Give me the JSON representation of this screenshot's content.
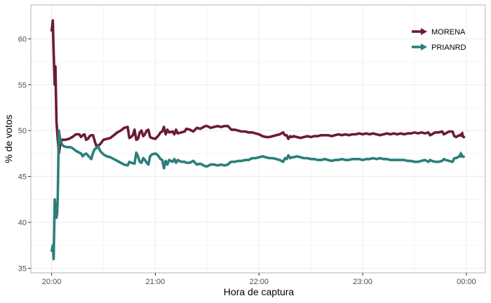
{
  "chart_data": {
    "type": "line",
    "xlabel": "Hora de captura",
    "ylabel": "% de votos",
    "x_unit": "time",
    "x_ticks": [
      "20:00",
      "21:00",
      "22:00",
      "23:00",
      "00:00"
    ],
    "x_tick_values": [
      0,
      60,
      120,
      180,
      240
    ],
    "xlim": [
      -12,
      251
    ],
    "y_ticks": [
      35,
      40,
      45,
      50,
      55,
      60
    ],
    "ylim": [
      34.5,
      63.7
    ],
    "grid": true,
    "legend_position": "top-right",
    "series": [
      {
        "name": "MORENA",
        "color": "#6b1a37",
        "points": [
          [
            0,
            60.8
          ],
          [
            0.7,
            62.0
          ],
          [
            1.2,
            58.5
          ],
          [
            1.8,
            55.0
          ],
          [
            2.2,
            57.0
          ],
          [
            2.8,
            51.0
          ],
          [
            3.5,
            49.2
          ],
          [
            4.2,
            47.5
          ],
          [
            5,
            48.5
          ],
          [
            6,
            49.0
          ],
          [
            8,
            49.0
          ],
          [
            10,
            49.1
          ],
          [
            12,
            49.3
          ],
          [
            14,
            49.6
          ],
          [
            16,
            49.6
          ],
          [
            17,
            49.3
          ],
          [
            18,
            49.5
          ],
          [
            19,
            49.6
          ],
          [
            20,
            49.0
          ],
          [
            21,
            49.1
          ],
          [
            22,
            49.4
          ],
          [
            23,
            49.5
          ],
          [
            24,
            49.5
          ],
          [
            25,
            48.8
          ],
          [
            26,
            48.3
          ],
          [
            27,
            48.4
          ],
          [
            28,
            48.5
          ],
          [
            30,
            49.0
          ],
          [
            32,
            49.1
          ],
          [
            34,
            49.2
          ],
          [
            36,
            49.5
          ],
          [
            38,
            49.8
          ],
          [
            40,
            50.0
          ],
          [
            42,
            50.3
          ],
          [
            44,
            50.4
          ],
          [
            45,
            49.2
          ],
          [
            46,
            49.3
          ],
          [
            47,
            49.5
          ],
          [
            48,
            50.1
          ],
          [
            49,
            49.0
          ],
          [
            50,
            49.1
          ],
          [
            51,
            49.8
          ],
          [
            52,
            50.0
          ],
          [
            53,
            49.4
          ],
          [
            54,
            49.6
          ],
          [
            55,
            50.0
          ],
          [
            56,
            50.1
          ],
          [
            57,
            49.3
          ],
          [
            58,
            49.2
          ],
          [
            60,
            49.1
          ],
          [
            61,
            49.3
          ],
          [
            62,
            49.5
          ],
          [
            63,
            49.8
          ],
          [
            64,
            49.9
          ],
          [
            65,
            50.4
          ],
          [
            66,
            49.6
          ],
          [
            67,
            50.1
          ],
          [
            68,
            49.8
          ],
          [
            70,
            49.9
          ],
          [
            71,
            49.6
          ],
          [
            72,
            50.1
          ],
          [
            73,
            49.7
          ],
          [
            75,
            49.8
          ],
          [
            77,
            49.9
          ],
          [
            78,
            50.2
          ],
          [
            80,
            50.1
          ],
          [
            82,
            49.9
          ],
          [
            84,
            50.3
          ],
          [
            86,
            50.2
          ],
          [
            88,
            50.4
          ],
          [
            89,
            50.5
          ],
          [
            90,
            50.5
          ],
          [
            91,
            50.4
          ],
          [
            92,
            50.3
          ],
          [
            94,
            50.4
          ],
          [
            96,
            50.5
          ],
          [
            98,
            50.4
          ],
          [
            100,
            50.5
          ],
          [
            102,
            50.5
          ],
          [
            103,
            50.3
          ],
          [
            104,
            50.1
          ],
          [
            106,
            50.1
          ],
          [
            108,
            50.0
          ],
          [
            110,
            49.9
          ],
          [
            112,
            49.9
          ],
          [
            114,
            49.8
          ],
          [
            116,
            49.8
          ],
          [
            118,
            49.7
          ],
          [
            120,
            49.6
          ],
          [
            122,
            49.4
          ],
          [
            124,
            49.3
          ],
          [
            126,
            49.3
          ],
          [
            128,
            49.4
          ],
          [
            130,
            49.5
          ],
          [
            132,
            49.6
          ],
          [
            134,
            49.8
          ],
          [
            135,
            49.5
          ],
          [
            136,
            49.5
          ],
          [
            137,
            49.1
          ],
          [
            138,
            49.4
          ],
          [
            139,
            49.3
          ],
          [
            140,
            49.4
          ],
          [
            142,
            49.3
          ],
          [
            144,
            49.2
          ],
          [
            146,
            49.3
          ],
          [
            148,
            49.4
          ],
          [
            150,
            49.3
          ],
          [
            152,
            49.4
          ],
          [
            154,
            49.4
          ],
          [
            156,
            49.5
          ],
          [
            158,
            49.5
          ],
          [
            160,
            49.5
          ],
          [
            162,
            49.4
          ],
          [
            164,
            49.5
          ],
          [
            166,
            49.6
          ],
          [
            168,
            49.5
          ],
          [
            170,
            49.6
          ],
          [
            172,
            49.5
          ],
          [
            174,
            49.6
          ],
          [
            176,
            49.6
          ],
          [
            178,
            49.7
          ],
          [
            180,
            49.6
          ],
          [
            182,
            49.7
          ],
          [
            184,
            49.6
          ],
          [
            186,
            49.7
          ],
          [
            188,
            49.6
          ],
          [
            190,
            49.5
          ],
          [
            192,
            49.6
          ],
          [
            194,
            49.7
          ],
          [
            196,
            49.6
          ],
          [
            198,
            49.7
          ],
          [
            200,
            49.6
          ],
          [
            202,
            49.7
          ],
          [
            204,
            49.6
          ],
          [
            206,
            49.7
          ],
          [
            208,
            49.7
          ],
          [
            210,
            49.8
          ],
          [
            212,
            49.7
          ],
          [
            214,
            49.8
          ],
          [
            216,
            49.7
          ],
          [
            218,
            49.8
          ],
          [
            219,
            49.5
          ],
          [
            220,
            49.6
          ],
          [
            222,
            49.8
          ],
          [
            224,
            49.8
          ],
          [
            226,
            49.9
          ],
          [
            227,
            49.6
          ],
          [
            228,
            49.7
          ],
          [
            230,
            49.9
          ],
          [
            232,
            49.9
          ],
          [
            233,
            49.4
          ],
          [
            234,
            49.3
          ],
          [
            236,
            49.5
          ],
          [
            238,
            49.4
          ],
          [
            239,
            49.2
          ]
        ]
      },
      {
        "name": "PRIANRD",
        "color": "#2a7f7a",
        "points": [
          [
            0,
            36.8
          ],
          [
            0.7,
            37.5
          ],
          [
            1.2,
            36.0
          ],
          [
            1.8,
            42.5
          ],
          [
            2.2,
            41.5
          ],
          [
            2.8,
            40.5
          ],
          [
            3.2,
            41.0
          ],
          [
            3.6,
            43.0
          ],
          [
            4.2,
            50.0
          ],
          [
            5,
            49.0
          ],
          [
            6,
            48.5
          ],
          [
            7,
            48.3
          ],
          [
            9,
            48.2
          ],
          [
            11,
            48.2
          ],
          [
            12,
            48.1
          ],
          [
            14,
            47.8
          ],
          [
            16,
            47.6
          ],
          [
            17,
            47.5
          ],
          [
            18,
            47.2
          ],
          [
            19,
            47.4
          ],
          [
            20,
            47.5
          ],
          [
            21,
            47.3
          ],
          [
            22,
            47.1
          ],
          [
            23,
            46.9
          ],
          [
            24,
            47.6
          ],
          [
            25,
            48.0
          ],
          [
            26,
            48.1
          ],
          [
            27,
            48.3
          ],
          [
            28,
            47.8
          ],
          [
            30,
            47.4
          ],
          [
            32,
            47.2
          ],
          [
            34,
            47.1
          ],
          [
            36,
            46.9
          ],
          [
            38,
            46.7
          ],
          [
            40,
            46.5
          ],
          [
            42,
            46.3
          ],
          [
            44,
            46.2
          ],
          [
            45,
            46.6
          ],
          [
            46,
            46.5
          ],
          [
            48,
            46.4
          ],
          [
            49,
            47.6
          ],
          [
            50,
            47.2
          ],
          [
            51,
            46.6
          ],
          [
            52,
            46.5
          ],
          [
            53,
            47.0
          ],
          [
            54,
            46.8
          ],
          [
            55,
            46.5
          ],
          [
            56,
            46.3
          ],
          [
            57,
            47.2
          ],
          [
            58,
            47.4
          ],
          [
            60,
            47.5
          ],
          [
            61,
            47.4
          ],
          [
            62,
            47.2
          ],
          [
            63,
            46.9
          ],
          [
            64,
            46.8
          ],
          [
            65,
            45.9
          ],
          [
            66,
            46.7
          ],
          [
            67,
            46.3
          ],
          [
            68,
            46.8
          ],
          [
            70,
            46.6
          ],
          [
            71,
            46.9
          ],
          [
            72,
            46.5
          ],
          [
            73,
            46.8
          ],
          [
            75,
            46.6
          ],
          [
            77,
            46.6
          ],
          [
            78,
            46.5
          ],
          [
            80,
            46.5
          ],
          [
            82,
            46.7
          ],
          [
            84,
            46.3
          ],
          [
            86,
            46.4
          ],
          [
            88,
            46.2
          ],
          [
            89,
            46.1
          ],
          [
            90,
            46.1
          ],
          [
            91,
            46.2
          ],
          [
            92,
            46.3
          ],
          [
            94,
            46.3
          ],
          [
            96,
            46.2
          ],
          [
            98,
            46.3
          ],
          [
            100,
            46.2
          ],
          [
            102,
            46.3
          ],
          [
            103,
            46.5
          ],
          [
            104,
            46.6
          ],
          [
            106,
            46.6
          ],
          [
            108,
            46.7
          ],
          [
            110,
            46.7
          ],
          [
            112,
            46.8
          ],
          [
            114,
            46.8
          ],
          [
            116,
            47.0
          ],
          [
            118,
            47.0
          ],
          [
            120,
            47.1
          ],
          [
            122,
            47.2
          ],
          [
            124,
            47.1
          ],
          [
            126,
            47.0
          ],
          [
            128,
            47.0
          ],
          [
            130,
            46.9
          ],
          [
            132,
            46.8
          ],
          [
            134,
            46.6
          ],
          [
            135,
            47.0
          ],
          [
            136,
            46.9
          ],
          [
            137,
            47.3
          ],
          [
            138,
            47.0
          ],
          [
            139,
            47.1
          ],
          [
            140,
            47.1
          ],
          [
            142,
            47.2
          ],
          [
            144,
            47.1
          ],
          [
            146,
            47.0
          ],
          [
            148,
            47.0
          ],
          [
            150,
            46.9
          ],
          [
            152,
            46.9
          ],
          [
            154,
            46.8
          ],
          [
            156,
            46.8
          ],
          [
            158,
            46.9
          ],
          [
            160,
            46.8
          ],
          [
            162,
            46.7
          ],
          [
            164,
            46.8
          ],
          [
            166,
            46.8
          ],
          [
            168,
            46.9
          ],
          [
            170,
            46.8
          ],
          [
            172,
            46.8
          ],
          [
            174,
            46.9
          ],
          [
            176,
            46.9
          ],
          [
            178,
            46.9
          ],
          [
            180,
            46.8
          ],
          [
            182,
            46.9
          ],
          [
            184,
            46.9
          ],
          [
            186,
            47.0
          ],
          [
            188,
            46.9
          ],
          [
            190,
            47.0
          ],
          [
            192,
            46.9
          ],
          [
            194,
            46.9
          ],
          [
            196,
            46.8
          ],
          [
            198,
            46.8
          ],
          [
            200,
            46.8
          ],
          [
            202,
            46.8
          ],
          [
            204,
            46.8
          ],
          [
            206,
            46.7
          ],
          [
            208,
            46.7
          ],
          [
            210,
            46.6
          ],
          [
            212,
            46.6
          ],
          [
            214,
            46.7
          ],
          [
            216,
            46.8
          ],
          [
            218,
            46.6
          ],
          [
            219,
            46.8
          ],
          [
            220,
            46.7
          ],
          [
            222,
            46.6
          ],
          [
            224,
            46.6
          ],
          [
            226,
            46.7
          ],
          [
            227,
            46.9
          ],
          [
            228,
            46.8
          ],
          [
            230,
            46.7
          ],
          [
            232,
            46.6
          ],
          [
            233,
            47.0
          ],
          [
            234,
            47.0
          ],
          [
            236,
            47.2
          ],
          [
            238,
            47.2
          ],
          [
            239,
            47.1
          ]
        ]
      }
    ]
  }
}
